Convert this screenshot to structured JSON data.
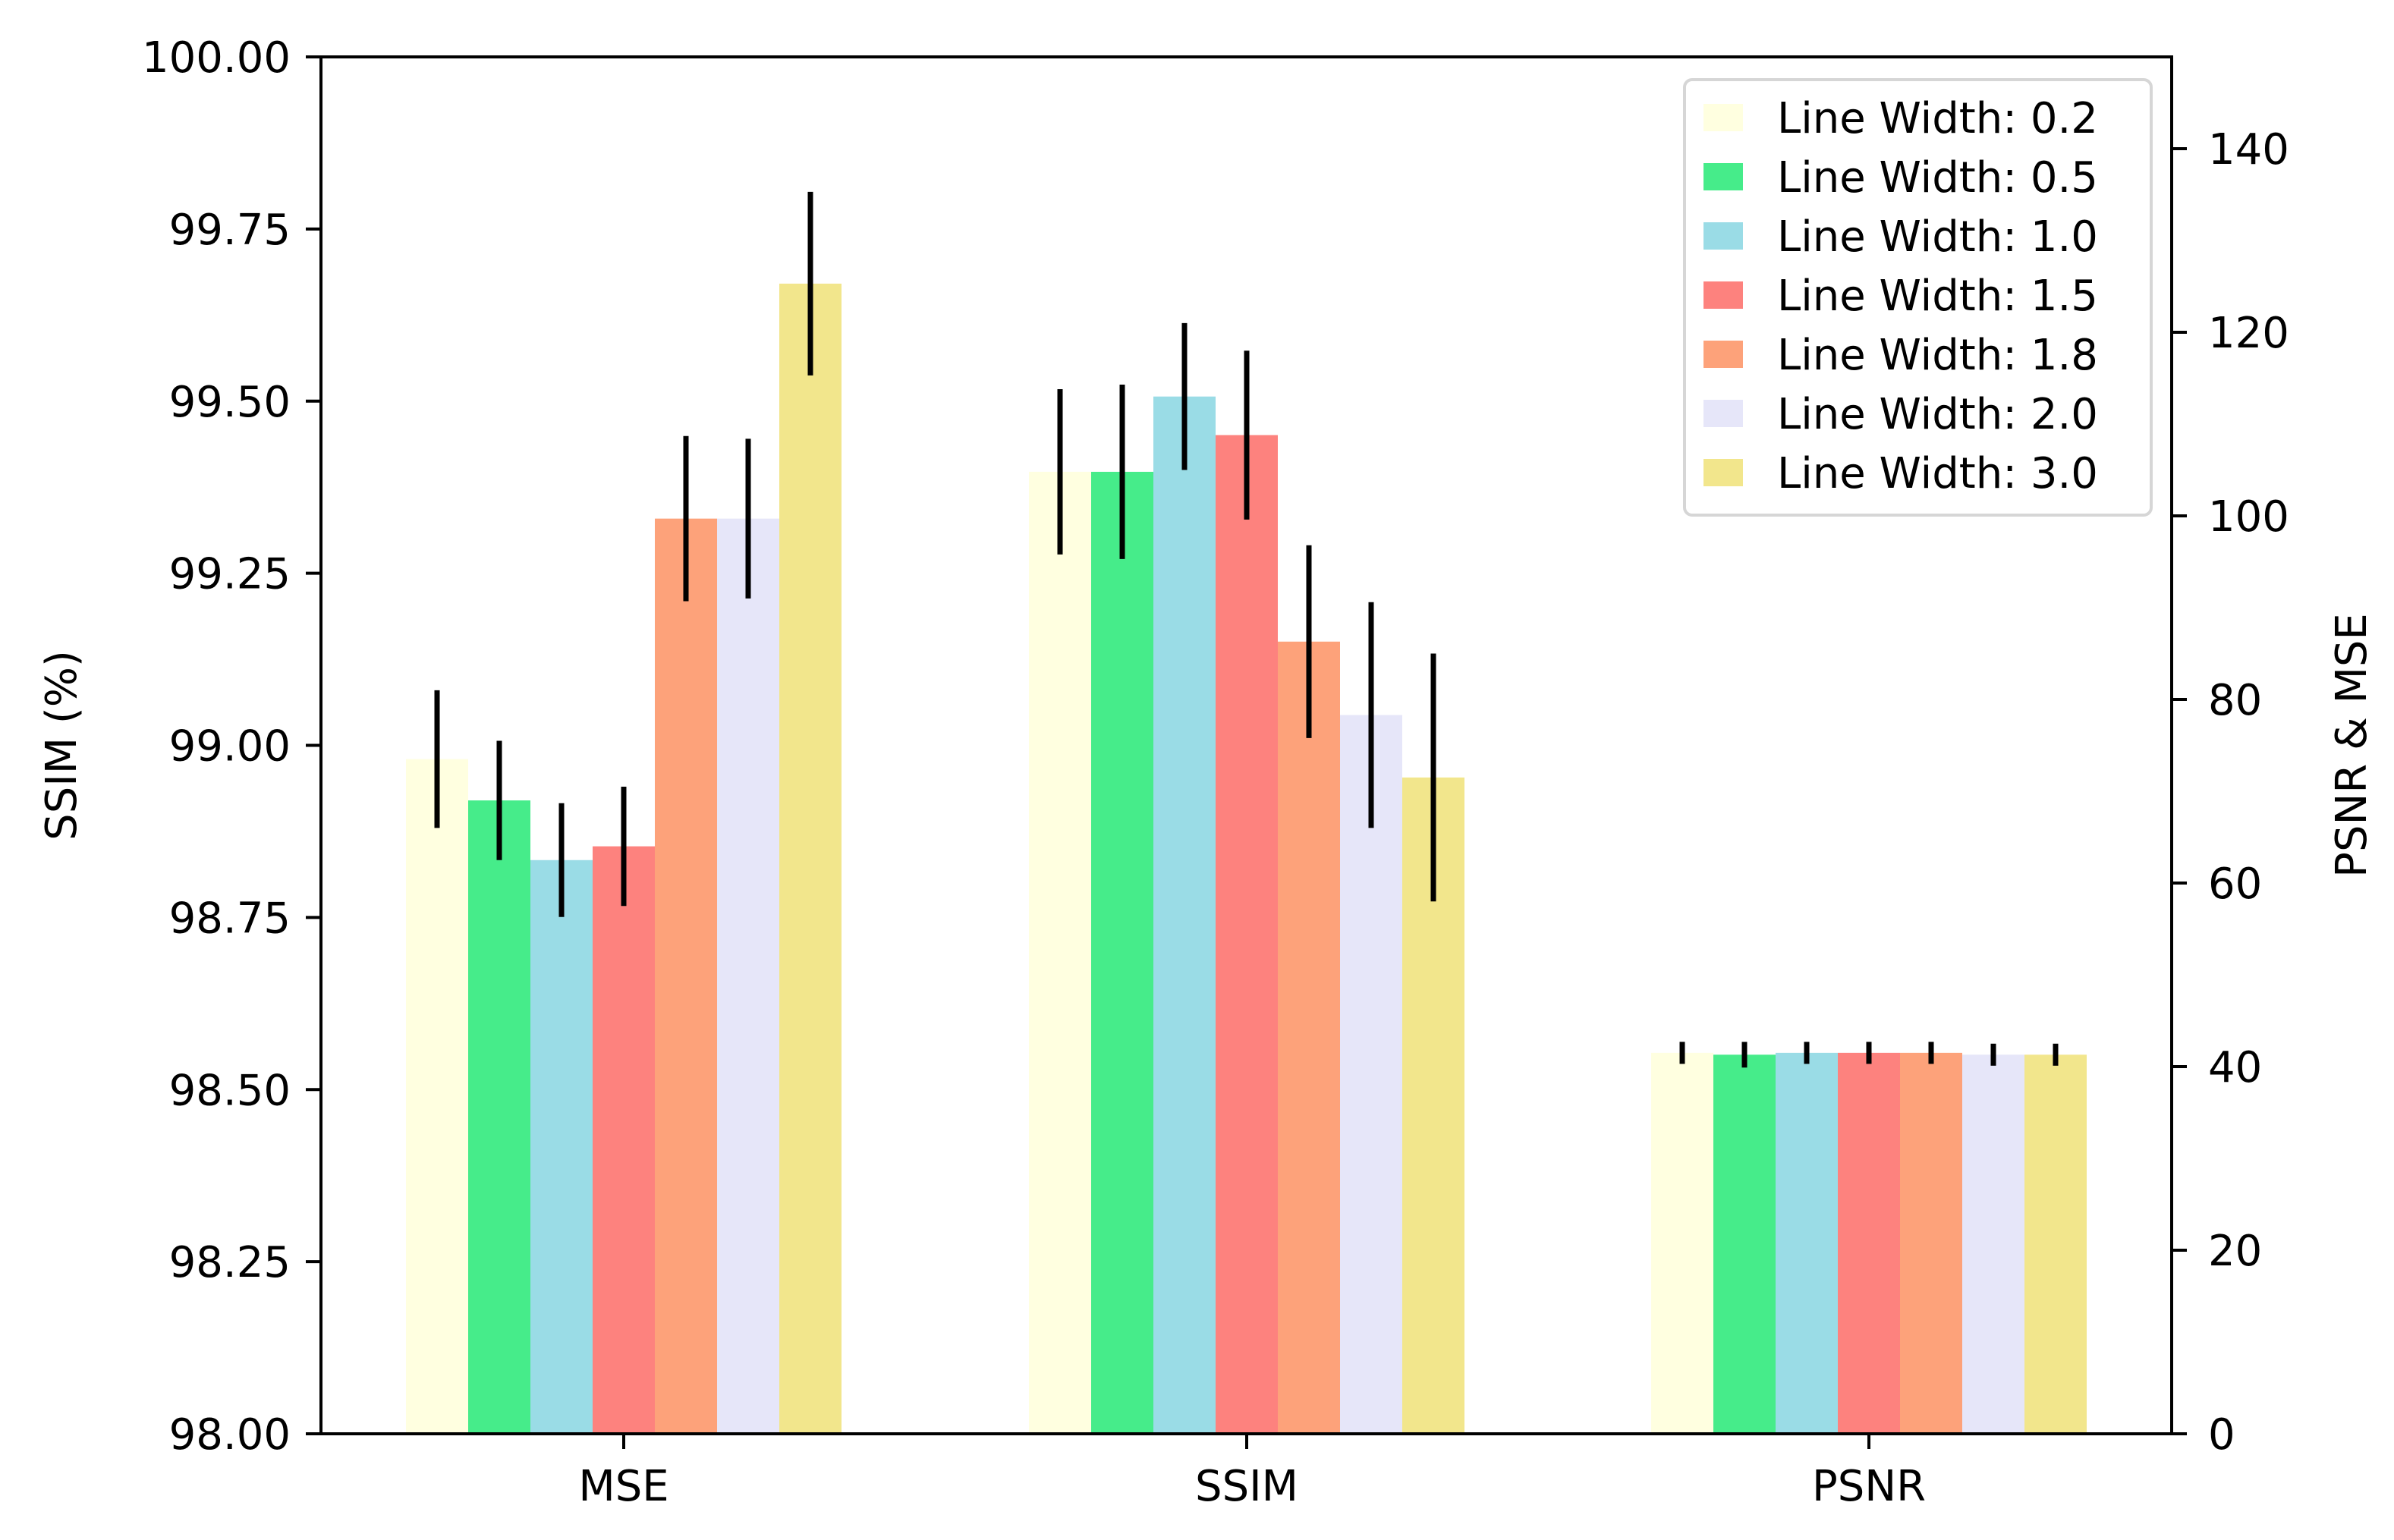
{
  "chart_data": {
    "type": "bar",
    "categories": [
      "MSE",
      "SSIM",
      "PSNR"
    ],
    "left_axis": {
      "label": "SSIM (%)",
      "ylim": [
        98.0,
        100.0
      ],
      "ticks": [
        98.0,
        98.25,
        98.5,
        98.75,
        99.0,
        99.25,
        99.5,
        99.75,
        100.0
      ],
      "tick_labels": [
        "98.00",
        "98.25",
        "98.50",
        "98.75",
        "99.00",
        "99.25",
        "99.50",
        "99.75",
        "100.00"
      ]
    },
    "right_axis": {
      "label": "PSNR & MSE",
      "ylim": [
        0,
        150
      ],
      "ticks": [
        0,
        20,
        40,
        60,
        80,
        100,
        120,
        140
      ],
      "tick_labels": [
        "0",
        "20",
        "40",
        "60",
        "80",
        "100",
        "120",
        "140"
      ]
    },
    "legend": {
      "location": "upper right"
    },
    "series": [
      {
        "name": "Line Width: 0.2",
        "color": "#FFFFE0",
        "values": [
          73.5,
          104.8,
          41.5
        ],
        "errors": [
          7.5,
          9.0,
          1.2
        ]
      },
      {
        "name": "Line Width: 0.5",
        "color": "#46EC8A",
        "values": [
          69.0,
          104.8,
          41.3
        ],
        "errors": [
          6.5,
          9.5,
          1.4
        ]
      },
      {
        "name": "Line Width: 1.0",
        "color": "#9ADCE6",
        "values": [
          62.5,
          113.0,
          41.5
        ],
        "errors": [
          6.2,
          8.0,
          1.2
        ]
      },
      {
        "name": "Line Width: 1.5",
        "color": "#FD827E",
        "values": [
          64.0,
          108.8,
          41.5
        ],
        "errors": [
          6.5,
          9.2,
          1.2
        ]
      },
      {
        "name": "Line Width: 1.8",
        "color": "#FDA27A",
        "values": [
          99.7,
          86.3,
          41.5
        ],
        "errors": [
          9.0,
          10.5,
          1.2
        ]
      },
      {
        "name": "Line Width: 2.0",
        "color": "#E6E6F9",
        "values": [
          99.7,
          78.3,
          41.3
        ],
        "errors": [
          8.7,
          12.3,
          1.2
        ]
      },
      {
        "name": "Line Width: 3.0",
        "color": "#F2E68C",
        "values": [
          125.3,
          71.5,
          41.3
        ],
        "errors": [
          10.0,
          13.5,
          1.2
        ]
      }
    ]
  }
}
